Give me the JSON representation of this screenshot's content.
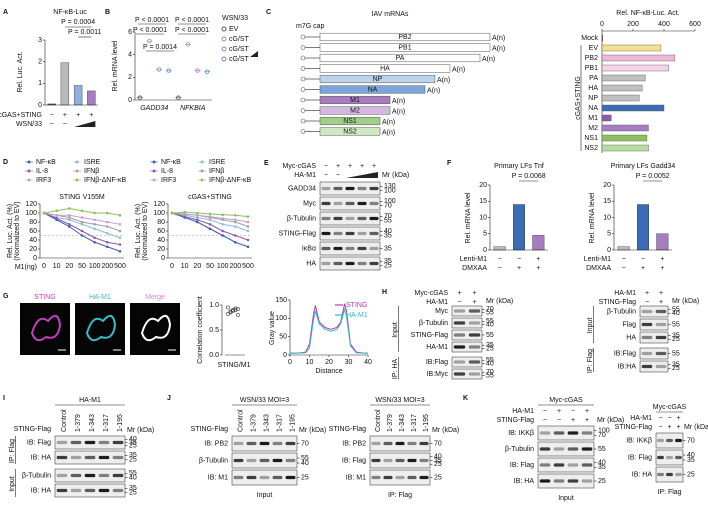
{
  "A": {
    "letter": "A",
    "title": "NF-κB-Luc",
    "ylabel": "Rel. Luc. Act.",
    "ylim": [
      0,
      3
    ],
    "yticks": [
      0,
      1,
      2,
      3
    ],
    "values": [
      0.05,
      1.95,
      0.9,
      0.65
    ],
    "colors": [
      "#555555",
      "#b9b9b9",
      "#8fb0d8",
      "#a77cc0"
    ],
    "pvalues": [
      "P = 0.0004",
      "P = 0.0011"
    ],
    "rows": [
      {
        "label": "cGAS+STING",
        "marks": [
          "−",
          "+",
          "+",
          "+"
        ]
      },
      {
        "label": "WSN/33",
        "marks": [
          "−",
          "−"
        ]
      }
    ]
  },
  "B": {
    "letter": "B",
    "ylabel": "Rel. mRNA level",
    "ylim": [
      0,
      6
    ],
    "yticks": [
      0,
      2,
      4,
      6
    ],
    "categories": [
      "GADD34",
      "NFKBIA"
    ],
    "legend_title": "WSN/33",
    "series": [
      {
        "name": "EV",
        "color": "#555555",
        "values": [
          0.2,
          0.2
        ]
      },
      {
        "name": "cG/ST",
        "color": "#999999",
        "values": [
          5.2,
          4.9
        ]
      },
      {
        "name": "cG/ST",
        "color": "#a77cc0",
        "values": [
          2.7,
          2.6
        ]
      },
      {
        "name": "cG/ST",
        "color": "#5b8fd0",
        "values": [
          2.6,
          2.5
        ]
      }
    ],
    "pvalues": [
      "P < 0.0001",
      "P < 0.0001",
      "P = 0.0014",
      "P < 0.0001",
      "P < 0.0001"
    ]
  },
  "C": {
    "letter": "C",
    "title": "IAV mRNAs",
    "cap": "m7G cap",
    "tail": "A(n)",
    "segments": [
      {
        "name": "PB2",
        "color": "#ffffff"
      },
      {
        "name": "PB1",
        "color": "#ffffff"
      },
      {
        "name": "PA",
        "color": "#ffffff"
      },
      {
        "name": "HA",
        "color": "#ffffff"
      },
      {
        "name": "NP",
        "color": "#bcd3ee"
      },
      {
        "name": "NA",
        "color": "#7aa6dc"
      },
      {
        "name": "M1",
        "color": "#a77cc0"
      },
      {
        "name": "M2",
        "color": "#d3b8e0"
      },
      {
        "name": "NS1",
        "color": "#9fcf8a"
      },
      {
        "name": "NS2",
        "color": "#cfe8c2"
      }
    ],
    "chart": {
      "type": "bar",
      "title": "Rel. NF-κB-Luc. Act.",
      "group": "cGAS+STING",
      "xlim": [
        0,
        600
      ],
      "xticks": [
        0,
        200,
        400,
        600
      ],
      "categories": [
        "Mock",
        "EV",
        "PB2",
        "PB1",
        "PA",
        "HA",
        "NP",
        "NA",
        "M1",
        "M2",
        "NS1",
        "NS2"
      ],
      "values": [
        5,
        380,
        470,
        430,
        280,
        260,
        240,
        400,
        60,
        300,
        290,
        300
      ],
      "colors": [
        "#555555",
        "#f3e38a",
        "#f0b8d8",
        "#f6d3e6",
        "#c0c0c0",
        "#c0c0c0",
        "#c0c0c0",
        "#3b6cb5",
        "#8e5aa8",
        "#a77cc0",
        "#8dc05a",
        "#b6dca0"
      ]
    }
  },
  "D": {
    "letter": "D",
    "xlabel": "M1(ng)",
    "ylabel": "Rel. Luc. Act. (%)",
    "ylabel2": "(Normalized to EV)",
    "categories": [
      "0",
      "10",
      "20",
      "50",
      "100",
      "200",
      "500"
    ],
    "ylim": [
      0,
      120
    ],
    "yticks": [
      0,
      20,
      40,
      60,
      80,
      100,
      120
    ],
    "charts": [
      {
        "type": "line",
        "title": "STING V155M",
        "series": [
          {
            "name": "NF-κB",
            "color": "#3b5fa8",
            "values": [
              100,
              85,
              70,
              50,
              35,
              25,
              15
            ]
          },
          {
            "name": "ISRE",
            "color": "#8fb8e0",
            "values": [
              100,
              90,
              85,
              75,
              65,
              55,
              45
            ]
          },
          {
            "name": "IL-8",
            "color": "#8e5aa8",
            "values": [
              100,
              88,
              75,
              60,
              45,
              35,
              30
            ]
          },
          {
            "name": "IFNβ",
            "color": "#a0a0a0",
            "values": [
              100,
              95,
              90,
              80,
              75,
              70,
              60
            ]
          },
          {
            "name": "IRF3",
            "color": "#c8a0d0",
            "values": [
              100,
              95,
              95,
              90,
              85,
              80,
              75
            ]
          },
          {
            "name": "IFNβ-ΔNF-κB",
            "color": "#8dc05a",
            "values": [
              100,
              105,
              110,
              105,
              100,
              100,
              95
            ]
          }
        ]
      },
      {
        "type": "line",
        "title": "cGAS+STING",
        "series": [
          {
            "name": "NF-κB",
            "color": "#3b5fa8",
            "values": [
              100,
              90,
              80,
              65,
              50,
              35,
              25
            ]
          },
          {
            "name": "ISRE",
            "color": "#8fb8e0",
            "values": [
              100,
              95,
              90,
              85,
              75,
              70,
              60
            ]
          },
          {
            "name": "IL-8",
            "color": "#8e5aa8",
            "values": [
              100,
              92,
              85,
              75,
              60,
              50,
              40
            ]
          },
          {
            "name": "IFNβ",
            "color": "#a0a0a0",
            "values": [
              100,
              98,
              95,
              90,
              85,
              80,
              70
            ]
          },
          {
            "name": "IRF3",
            "color": "#c8a0d0",
            "values": [
              100,
              97,
              95,
              92,
              88,
              85,
              80
            ]
          },
          {
            "name": "IFNβ-ΔNF-κB",
            "color": "#8dc05a",
            "values": [
              100,
              102,
              100,
              98,
              96,
              95,
              92
            ]
          }
        ]
      }
    ]
  },
  "E": {
    "letter": "E",
    "header": [
      {
        "label": "Myc-cGAS",
        "marks": [
          "−",
          "+",
          "+",
          "+",
          "+"
        ]
      },
      {
        "label": "HA-M1",
        "marks": [
          "−",
          "−"
        ]
      }
    ],
    "mr": "Mr (kDa)",
    "sections": [
      {
        "rows": [
          {
            "label": "GADD34",
            "kda": [
              130,
              100
            ]
          },
          {
            "label": "Myc",
            "kda": [
              100,
              70
            ]
          },
          {
            "label": "β-Tubulin",
            "kda": [
              70,
              55
            ]
          },
          {
            "label": "STING-Flag",
            "kda": [
              40,
              35
            ]
          },
          {
            "label": "IκBα",
            "kda": [
              35
            ]
          },
          {
            "label": "HA",
            "kda": [
              35,
              25
            ]
          }
        ]
      }
    ]
  },
  "F": {
    "letter": "F",
    "ylabel": "Rel. mRNA level",
    "rows": [
      {
        "label": "Lenti-M1",
        "marks": [
          "−",
          "−",
          "+"
        ]
      },
      {
        "label": "DMXAA",
        "marks": [
          "−",
          "+",
          "+"
        ]
      }
    ],
    "charts": [
      {
        "type": "bar",
        "title": "Primary LFs Tnf",
        "ylim": [
          0,
          20
        ],
        "yticks": [
          0,
          5,
          10,
          15,
          20
        ],
        "values": [
          1,
          14,
          4.5
        ],
        "colors": [
          "#bbbbbb",
          "#3b6cb5",
          "#a77cc0"
        ],
        "pvalue": "P = 0.0068"
      },
      {
        "type": "bar",
        "title": "Primary LFs Gadd34",
        "ylim": [
          0,
          20
        ],
        "yticks": [
          0,
          5,
          10,
          15,
          20
        ],
        "values": [
          1,
          14,
          5
        ],
        "colors": [
          "#bbbbbb",
          "#3b6cb5",
          "#a77cc0"
        ],
        "pvalue": "P = 0.0052"
      }
    ]
  },
  "G": {
    "letter": "G",
    "images": [
      "STING",
      "HA-M1",
      "Merge"
    ],
    "corr": {
      "type": "scatter",
      "ylabel": "Correlation coefficient",
      "category": "STING/M1",
      "ylim": [
        0,
        1
      ],
      "yticks": [
        {
          "value": 0,
          "label": "0.0"
        },
        0.5,
        {
          "value": 1,
          "label": "1.0"
        }
      ],
      "values": [
        0.82,
        0.85,
        0.88,
        0.9,
        0.92,
        0.95,
        0.87,
        0.9,
        0.93,
        0.8
      ]
    },
    "profile": {
      "type": "line",
      "ylabel": "Gray value",
      "xlabel": "Distance",
      "ylim": [
        0,
        150
      ],
      "yticks": [
        0,
        50,
        100,
        150
      ],
      "xlim": [
        0,
        40
      ],
      "xticks": [
        0,
        10,
        20,
        30,
        40
      ],
      "x": [
        0,
        4,
        8,
        10,
        12,
        13,
        15,
        18,
        21,
        24,
        26,
        28,
        29,
        31,
        34,
        38,
        40
      ],
      "series": [
        {
          "name": "STING",
          "color": "#b03cb0",
          "values": [
            5,
            5,
            8,
            30,
            110,
            135,
            90,
            75,
            70,
            75,
            90,
            140,
            120,
            30,
            8,
            5,
            5
          ]
        },
        {
          "name": "HA-M1",
          "color": "#2fb8c0",
          "values": [
            5,
            5,
            6,
            20,
            95,
            120,
            85,
            70,
            65,
            70,
            85,
            125,
            105,
            25,
            6,
            5,
            5
          ]
        }
      ]
    }
  },
  "H": {
    "letter": "H",
    "left": {
      "header": [
        {
          "label": "Myc-cGAS",
          "marks": [
            "+",
            "+"
          ]
        },
        {
          "label": "HA-M1",
          "marks": [
            "−",
            "+"
          ]
        }
      ],
      "mr": "Mr (kDa)",
      "sections": [
        {
          "label": "Input",
          "rows": [
            {
              "label": "Myc",
              "kda": [
                70,
                55
              ]
            },
            {
              "label": "β-Tubulin",
              "kda": [
                55,
                40
              ]
            },
            {
              "label": "STING-Flag",
              "kda": [
                55
              ]
            },
            {
              "label": "HA-M1",
              "kda": [
                35,
                25
              ]
            }
          ]
        },
        {
          "label": "IP: HA",
          "rows": [
            {
              "label": "IB:Flag",
              "kda": [
                55,
                40
              ]
            },
            {
              "label": "IB:Myc",
              "kda": [
                70,
                55
              ]
            }
          ]
        }
      ]
    },
    "right": {
      "header": [
        {
          "label": "HA-M1",
          "marks": [
            "+",
            "+"
          ]
        },
        {
          "label": "STING-Flag",
          "marks": [
            "−",
            "+"
          ]
        }
      ],
      "mr": "Mr (kDa)",
      "sections": [
        {
          "label": "Input",
          "rows": [
            {
              "label": "β-Tubulin",
              "kda": [
                55,
                40
              ]
            },
            {
              "label": "Flag",
              "kda": [
                55
              ]
            },
            {
              "label": "HA",
              "kda": [
                35,
                25
              ]
            }
          ]
        },
        {
          "label": "IP: Flag",
          "rows": [
            {
              "label": "IB:Flag",
              "kda": [
                55
              ]
            },
            {
              "label": "IB:HA",
              "kda": [
                35,
                25
              ]
            }
          ]
        }
      ]
    }
  },
  "I": {
    "letter": "I",
    "title": "HA-M1",
    "lanes": {
      "label": "STING-Flag",
      "names": [
        "Control",
        "1-379",
        "1-343",
        "1-317",
        "1-195"
      ]
    },
    "mr": "Mr (kDa)",
    "sections": [
      {
        "label": "IP: Flag",
        "rows": [
          {
            "label": "IB: Flag",
            "kda": [
              40,
              35,
              25
            ]
          },
          {
            "label": "IB: HA",
            "kda": [
              35,
              25
            ]
          }
        ]
      },
      {
        "label": "Input",
        "rows": [
          {
            "label": "β-Tubulin",
            "kda": [
              55,
              40
            ]
          },
          {
            "label": "IB: HA",
            "kda": [
              35,
              25
            ]
          }
        ]
      }
    ]
  },
  "J": {
    "letter": "J",
    "left": {
      "title": "WSN/33 MOI=3",
      "lanes": {
        "label": "STING-Flag",
        "names": [
          "Control",
          "1-379",
          "1-343",
          "1-317",
          "1-195"
        ]
      },
      "mr": "Mr (kDa)",
      "sections": [
        {
          "rows": [
            {
              "label": "IB: PB2",
              "kda": [
                70
              ]
            },
            {
              "label": "β-Tubulin",
              "kda": [
                55,
                40
              ]
            },
            {
              "label": "IB: M1",
              "kda": [
                25
              ]
            }
          ]
        }
      ],
      "footer": "Input"
    },
    "right": {
      "title": "WSN/33 MOI=3",
      "lanes": {
        "label": "STING-Flag",
        "names": [
          "Control",
          "1-379",
          "1-343",
          "1-317",
          "1-195"
        ]
      },
      "mr": "Mr (kDa)",
      "sections": [
        {
          "rows": [
            {
              "label": "IB: PB2",
              "kda": [
                70
              ]
            },
            {
              "label": "IB: Flag",
              "kda": [
                40,
                35,
                25
              ]
            },
            {
              "label": "IB: M1",
              "kda": [
                25
              ]
            }
          ]
        }
      ],
      "footer": "IP: Flag"
    }
  },
  "K": {
    "letter": "K",
    "left": {
      "title": "Myc-cGAS",
      "header": [
        {
          "label": "HA-M1",
          "marks": [
            "−",
            "+",
            "−",
            "+"
          ]
        },
        {
          "label": "STING-Flag",
          "marks": [
            "−",
            "−",
            "+",
            "+"
          ]
        }
      ],
      "mr": "Mr (kDa)",
      "sections": [
        {
          "rows": [
            {
              "label": "IB: IKKβ",
              "kda": [
                100,
                70
              ]
            },
            {
              "label": "β-Tubulin",
              "kda": [
                55
              ]
            },
            {
              "label": "IB: Flag",
              "kda": [
                40,
                35
              ]
            },
            {
              "label": "IB: HA",
              "kda": [
                25
              ]
            }
          ]
        }
      ],
      "footer": "Input"
    },
    "right": {
      "title": "Myc-cGAS",
      "header": [
        {
          "label": "HA-M1",
          "marks": [
            "−",
            "−",
            "+"
          ]
        },
        {
          "label": "STING-Flag",
          "marks": [
            "−",
            "+",
            "+"
          ]
        }
      ],
      "mr": "Mr (kDa)",
      "sections": [
        {
          "rows": [
            {
              "label": "IB: IKKβ",
              "kda": [
                70
              ]
            },
            {
              "label": "IB: Flag",
              "kda": [
                40,
                35
              ]
            },
            {
              "label": "IB: HA",
              "kda": [
                25
              ]
            }
          ]
        }
      ],
      "footer": "IP: Flag"
    }
  }
}
